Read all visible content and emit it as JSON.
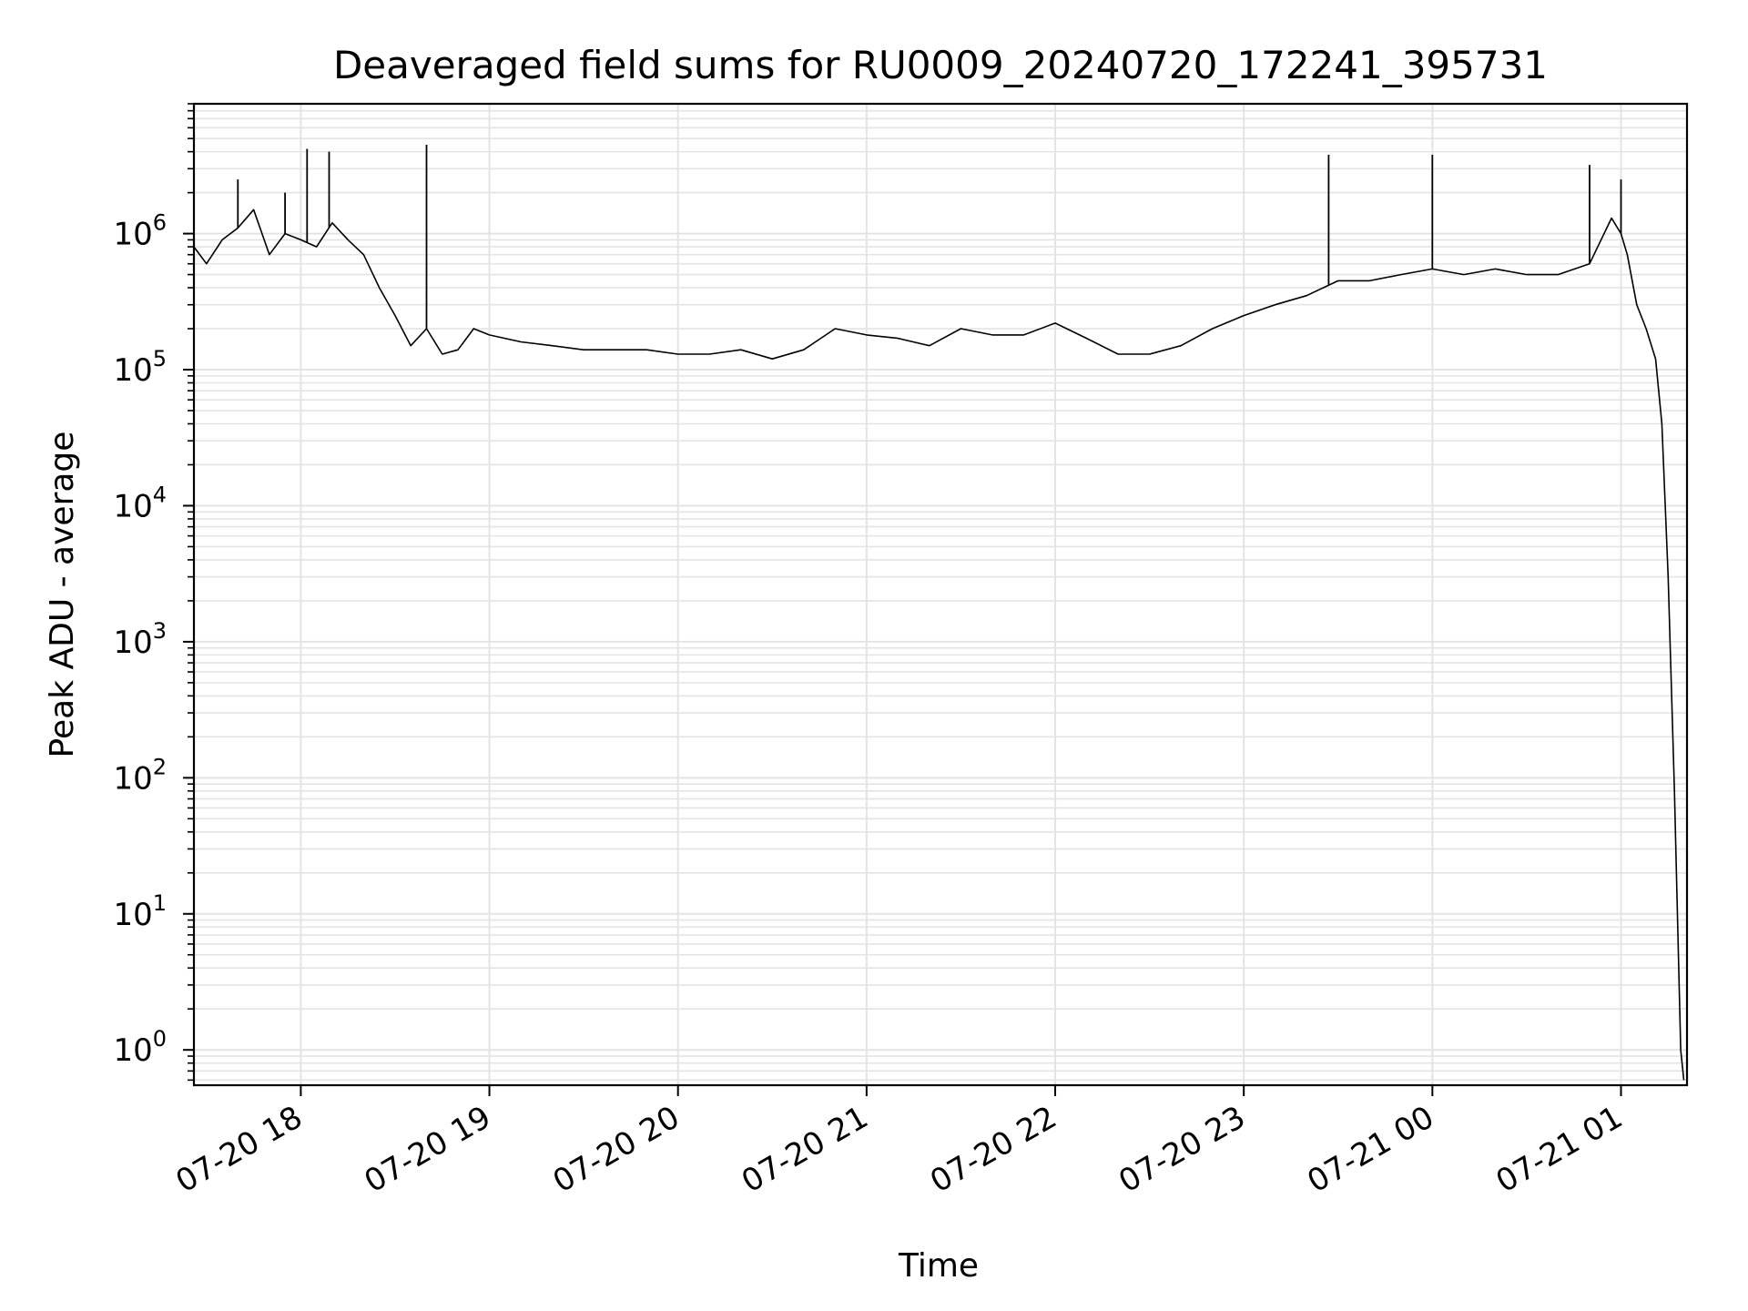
{
  "chart_data": {
    "type": "line",
    "title": "Deaveraged field sums for RU0009_20240720_172241_395731",
    "xlabel": "Time",
    "ylabel": "Peak ADU - average",
    "yscale": "log",
    "grid": "on (major and minor)",
    "x_tick_labels": [
      "07-20 18",
      "07-20 19",
      "07-20 20",
      "07-20 21",
      "07-20 22",
      "07-20 23",
      "07-21 00",
      "07-21 01"
    ],
    "y_tick_labels": [
      {
        "base": "10",
        "exp": "0"
      },
      {
        "base": "10",
        "exp": "1"
      },
      {
        "base": "10",
        "exp": "2"
      },
      {
        "base": "10",
        "exp": "3"
      },
      {
        "base": "10",
        "exp": "4"
      },
      {
        "base": "10",
        "exp": "5"
      },
      {
        "base": "10",
        "exp": "6"
      }
    ],
    "xlim": [
      "2024-07-20 17:26",
      "2024-07-21 01:21"
    ],
    "ylim": [
      0.55,
      9000000
    ],
    "line_color": "#000000",
    "grid_color": "#e4e4e4",
    "series": [
      {
        "x": [
          "2024-07-20 17:26",
          "2024-07-20 17:30",
          "2024-07-20 17:35",
          "2024-07-20 17:40",
          "2024-07-20 17:45",
          "2024-07-20 17:50",
          "2024-07-20 17:55",
          "2024-07-20 18:00",
          "2024-07-20 18:05",
          "2024-07-20 18:10",
          "2024-07-20 18:15",
          "2024-07-20 18:20",
          "2024-07-20 18:25",
          "2024-07-20 18:30",
          "2024-07-20 18:35",
          "2024-07-20 18:40",
          "2024-07-20 18:45",
          "2024-07-20 18:50",
          "2024-07-20 18:55",
          "2024-07-20 19:00",
          "2024-07-20 19:10",
          "2024-07-20 19:20",
          "2024-07-20 19:30",
          "2024-07-20 19:40",
          "2024-07-20 19:50",
          "2024-07-20 20:00",
          "2024-07-20 20:10",
          "2024-07-20 20:20",
          "2024-07-20 20:30",
          "2024-07-20 20:40",
          "2024-07-20 20:50",
          "2024-07-20 21:00",
          "2024-07-20 21:10",
          "2024-07-20 21:20",
          "2024-07-20 21:30",
          "2024-07-20 21:40",
          "2024-07-20 21:50",
          "2024-07-20 22:00",
          "2024-07-20 22:10",
          "2024-07-20 22:20",
          "2024-07-20 22:30",
          "2024-07-20 22:40",
          "2024-07-20 22:50",
          "2024-07-20 23:00",
          "2024-07-20 23:10",
          "2024-07-20 23:20",
          "2024-07-20 23:30",
          "2024-07-20 23:40",
          "2024-07-20 23:50",
          "2024-07-21 00:00",
          "2024-07-21 00:10",
          "2024-07-21 00:20",
          "2024-07-21 00:30",
          "2024-07-21 00:40",
          "2024-07-21 00:50",
          "2024-07-21 00:57",
          "2024-07-21 01:00",
          "2024-07-21 01:02",
          "2024-07-21 01:05",
          "2024-07-21 01:08",
          "2024-07-21 01:11",
          "2024-07-21 01:13",
          "2024-07-21 01:15",
          "2024-07-21 01:17",
          "2024-07-21 01:19",
          "2024-07-21 01:20"
        ],
        "y": [
          800000,
          600000,
          900000,
          1100000,
          1500000,
          700000,
          1000000,
          900000,
          800000,
          1200000,
          900000,
          700000,
          400000,
          250000,
          150000,
          200000,
          130000,
          140000,
          200000,
          180000,
          160000,
          150000,
          140000,
          140000,
          140000,
          130000,
          130000,
          140000,
          120000,
          140000,
          200000,
          180000,
          170000,
          150000,
          200000,
          180000,
          180000,
          220000,
          170000,
          130000,
          130000,
          150000,
          200000,
          250000,
          300000,
          350000,
          450000,
          450000,
          500000,
          550000,
          500000,
          550000,
          500000,
          500000,
          600000,
          1300000,
          1000000,
          700000,
          300000,
          200000,
          120000,
          40000,
          3000,
          80,
          1,
          0.6
        ]
      },
      {
        "name": "",
        "x": [
          "2024-07-20 17:40",
          "2024-07-20 18:02",
          "2024-07-20 18:09",
          "2024-07-20 18:40",
          "2024-07-20 23:27",
          "2024-07-21 00:00",
          "2024-07-20 17:55",
          "2024-07-21 00:50",
          "2024-07-21 01:00"
        ],
        "y": [
          2500000,
          4200000,
          4000000,
          4500000,
          3800000,
          3800000,
          2000000,
          3200000,
          2500000
        ]
      }
    ]
  }
}
